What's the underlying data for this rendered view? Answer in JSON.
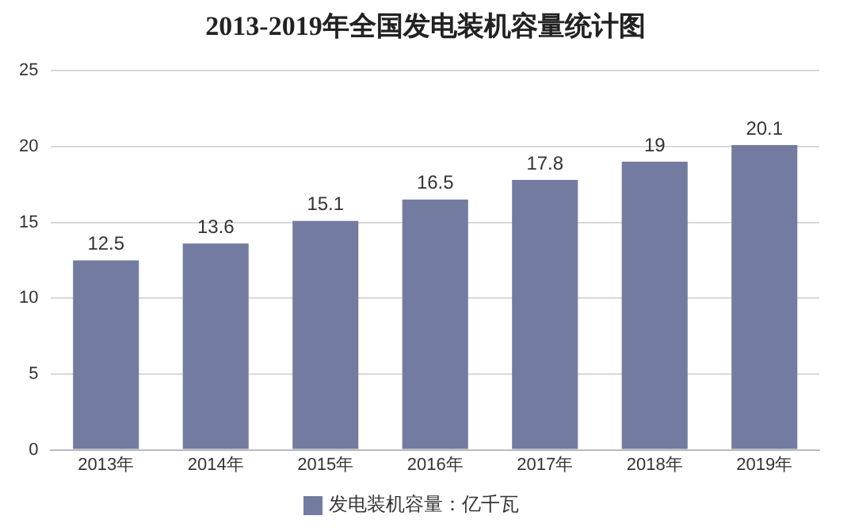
{
  "chart_data": {
    "type": "bar",
    "title": "2013-2019年全国发电装机容量统计图",
    "categories": [
      "2013年",
      "2014年",
      "2015年",
      "2016年",
      "2017年",
      "2018年",
      "2019年"
    ],
    "series": [
      {
        "name": "发电装机容量：亿千瓦",
        "color": "#737ca0",
        "values": [
          12.5,
          13.6,
          15.1,
          16.5,
          17.8,
          19,
          20.1
        ]
      }
    ],
    "ylim": [
      0,
      25
    ],
    "yticks": [
      0,
      5,
      10,
      15,
      20,
      25
    ],
    "grid": "y",
    "legend": "bottom",
    "data_labels": true
  }
}
